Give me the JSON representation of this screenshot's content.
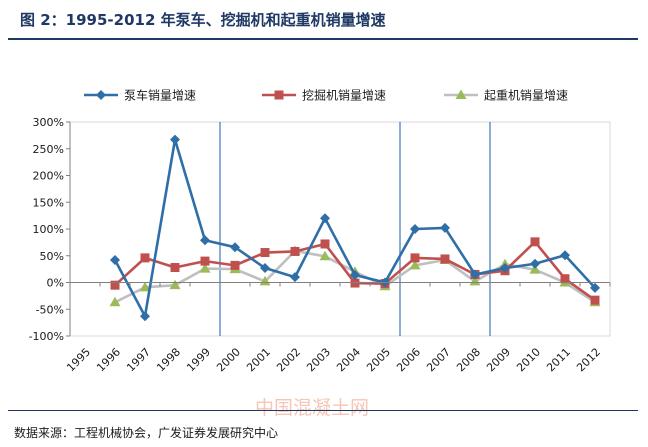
{
  "title": "图 2：1995-2012 年泵车、挖掘机和起重机销量增速",
  "source": "数据来源：工程机械协会，广发证券发展研究中心",
  "watermark": "中国混凝土网",
  "colors": {
    "pump": "#2e6fa7",
    "excavator": "#c0504d",
    "crane": "#9bbb59",
    "crane_line": "#bfbfbf",
    "divider": "#4f81bd",
    "axis": "#808080"
  },
  "chart_data": {
    "type": "line",
    "x": [
      "1995",
      "1996",
      "1997",
      "1998",
      "1999",
      "2000",
      "2001",
      "2002",
      "2003",
      "2004",
      "2005",
      "2006",
      "2007",
      "2008",
      "2009",
      "2010",
      "2011",
      "2012"
    ],
    "series": [
      {
        "name": "泵车销量增速",
        "values": [
          null,
          42,
          -63,
          267,
          79,
          66,
          27,
          10,
          120,
          14,
          0,
          100,
          102,
          15,
          27,
          35,
          51,
          -10
        ]
      },
      {
        "name": "挖掘机销量增速",
        "values": [
          null,
          -5,
          46,
          28,
          40,
          32,
          56,
          58,
          72,
          -1,
          -2,
          46,
          44,
          15,
          22,
          76,
          7,
          -33
        ]
      },
      {
        "name": "起重机销量增速",
        "values": [
          null,
          -37,
          -9,
          -5,
          26,
          25,
          2,
          59,
          49,
          20,
          -7,
          32,
          42,
          2,
          34,
          24,
          0,
          -37
        ]
      }
    ],
    "yticks": [
      "300%",
      "250%",
      "200%",
      "150%",
      "100%",
      "50%",
      "0%",
      "-50%",
      "-100%"
    ],
    "ylim": [
      -100,
      300
    ],
    "dividers": [
      "1999",
      "2005",
      "2008"
    ],
    "legend": "top"
  }
}
